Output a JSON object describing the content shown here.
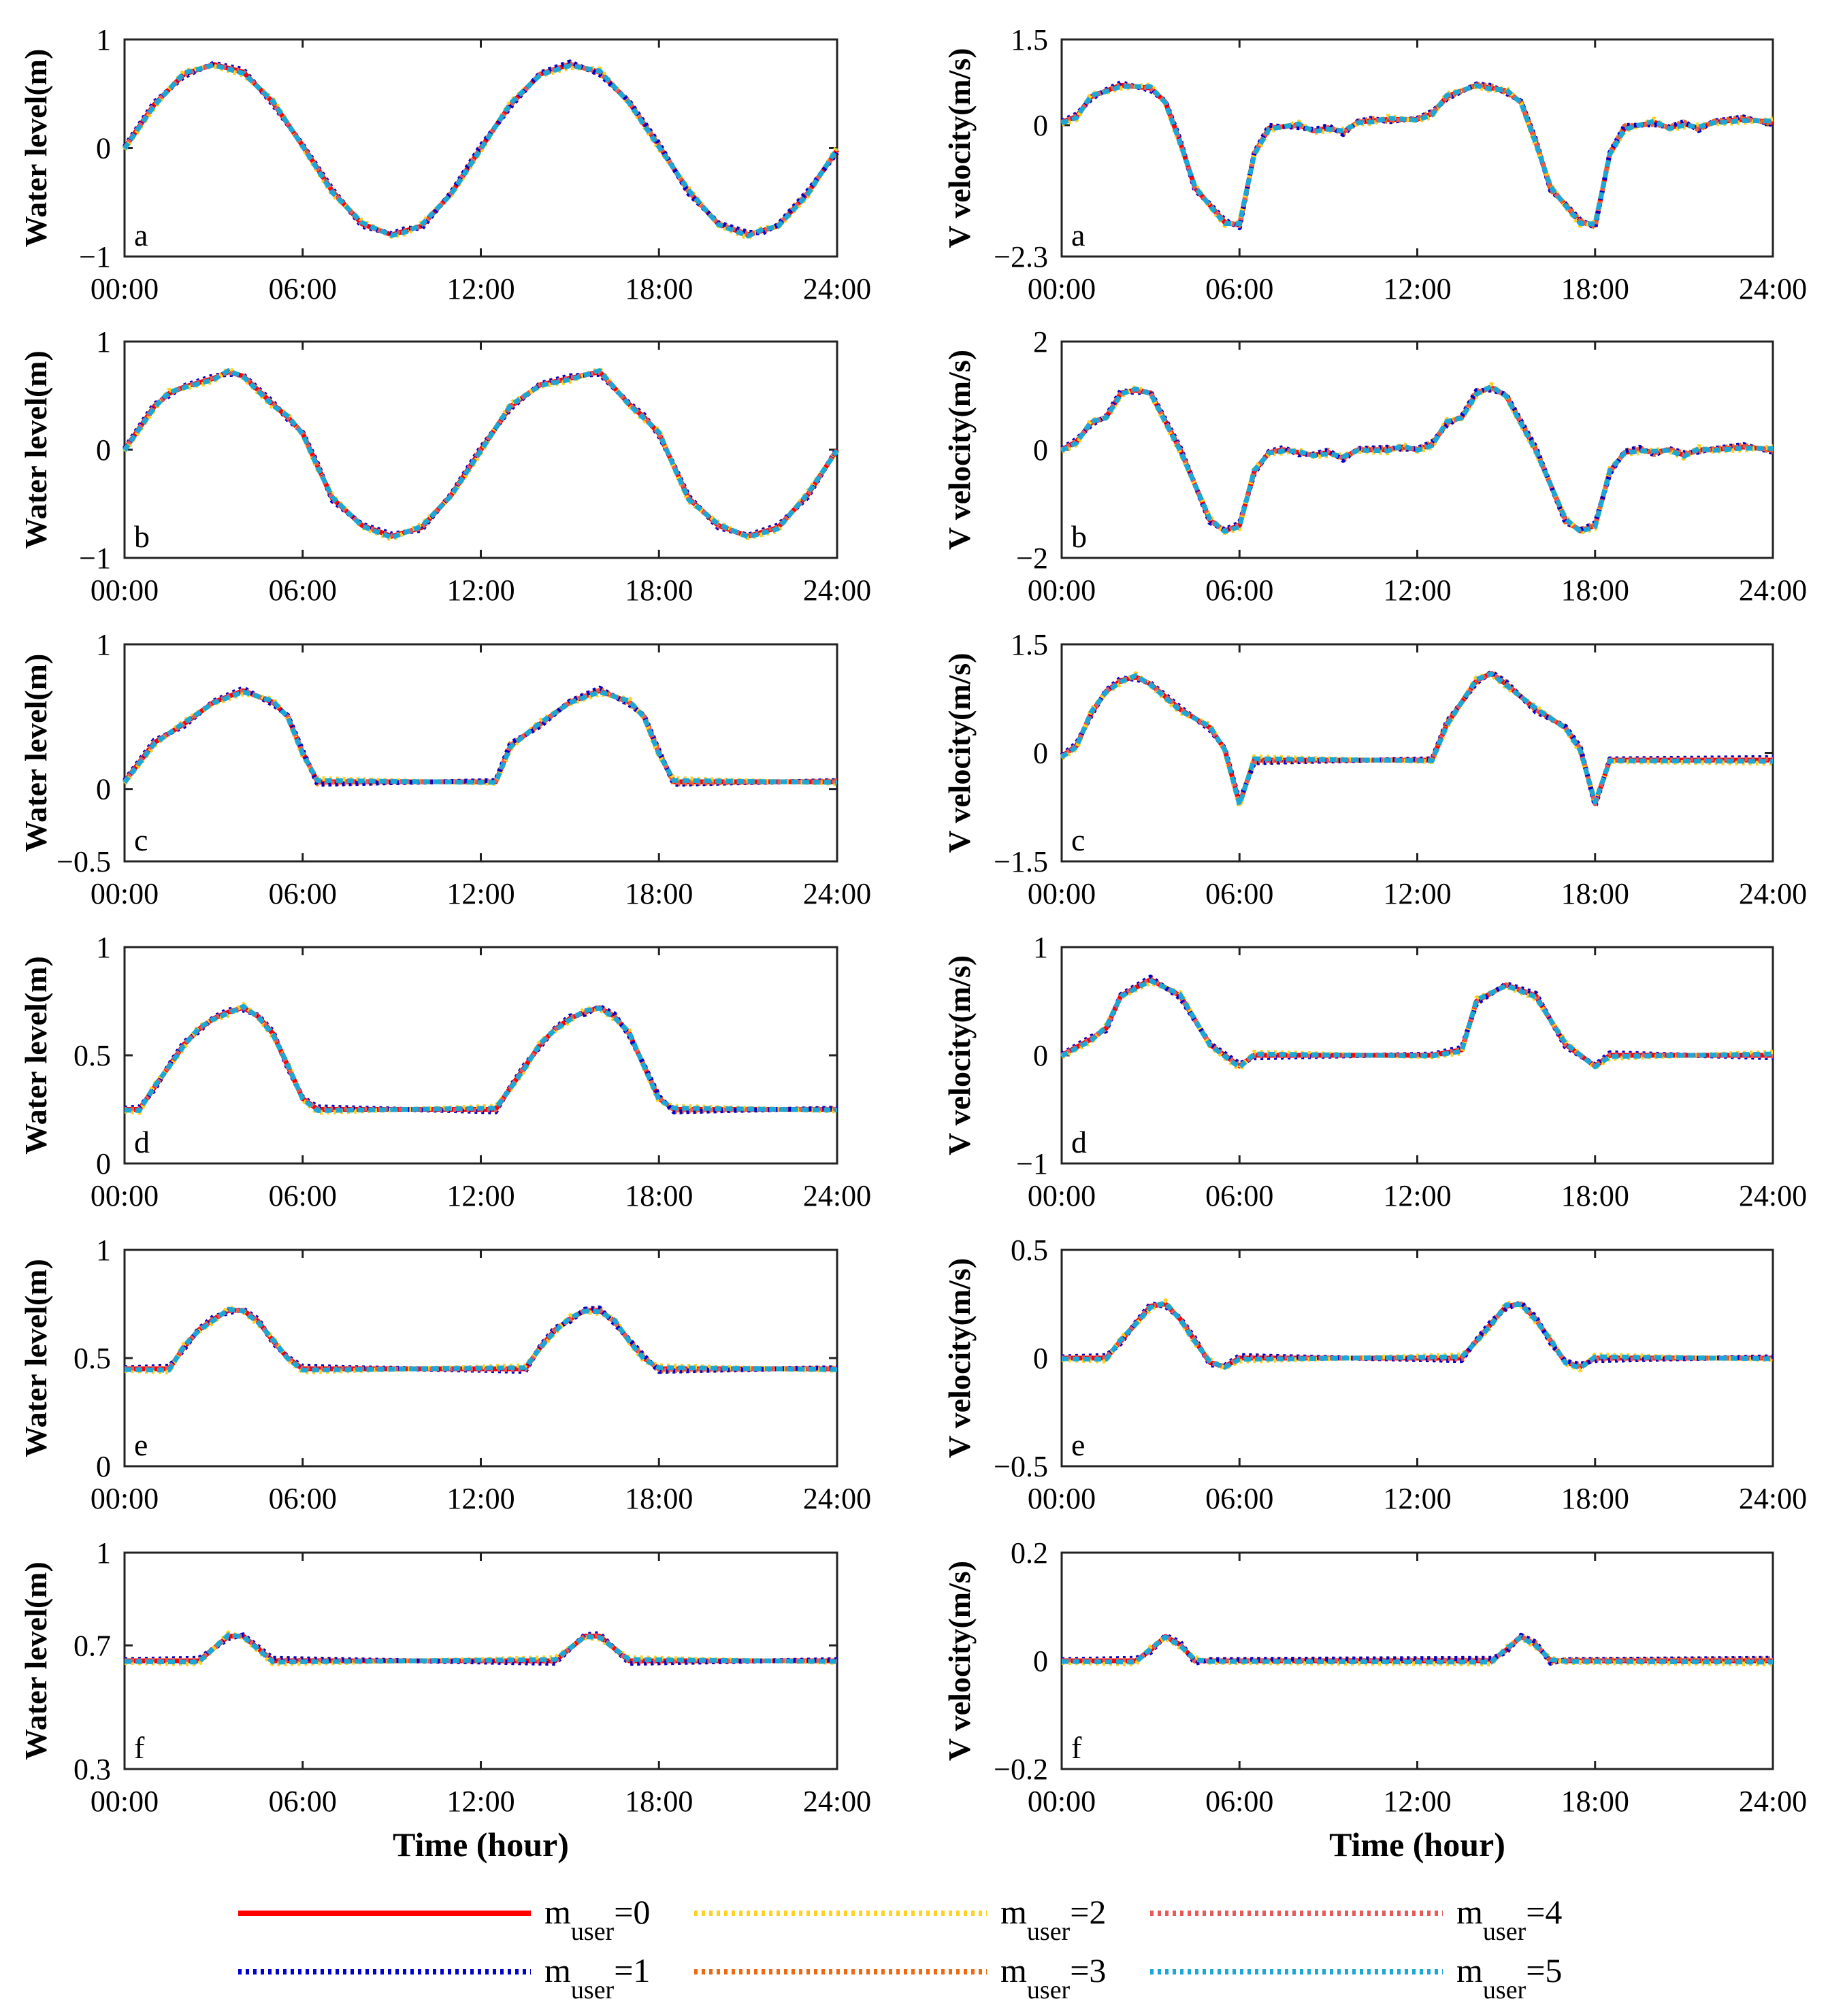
{
  "colors": {
    "m0": "#ff0000",
    "m1": "#0000cc",
    "m2": "#ffd21f",
    "m3": "#ee6a12",
    "m4": "#e85a5a",
    "m5": "#1ba8d6"
  },
  "legend": {
    "items": [
      {
        "key": "m0",
        "main": "m",
        "sub": "user",
        "eq": "=0",
        "style": "solid"
      },
      {
        "key": "m1",
        "main": "m",
        "sub": "user",
        "eq": "=1",
        "style": "dotted"
      },
      {
        "key": "m2",
        "main": "m",
        "sub": "user",
        "eq": "=2",
        "style": "dotted"
      },
      {
        "key": "m3",
        "main": "m",
        "sub": "user",
        "eq": "=3",
        "style": "dotted"
      },
      {
        "key": "m4",
        "main": "m",
        "sub": "user",
        "eq": "=4",
        "style": "dotted"
      },
      {
        "key": "m5",
        "main": "m",
        "sub": "user",
        "eq": "=5",
        "style": "dotted"
      }
    ]
  },
  "chart_data": [
    {
      "type": "line",
      "panel": "a",
      "column": "left",
      "ylabel": "Water level(m)",
      "xlabel": "",
      "ylim": [
        -1,
        1
      ],
      "yticks": [
        -1,
        0,
        1
      ],
      "yticklabels": [
        "−1",
        "0",
        "1"
      ],
      "xticklabels": [
        "00:00",
        "06:00",
        "12:00",
        "18:00",
        "24:00"
      ],
      "x": [
        0,
        1,
        2,
        3,
        4,
        5,
        6,
        7,
        8,
        9,
        9.5,
        10,
        11,
        12,
        13,
        14,
        15,
        16,
        17,
        18,
        19,
        20,
        21,
        21.5,
        22,
        23,
        24
      ],
      "y": [
        0,
        0.4,
        0.68,
        0.77,
        0.7,
        0.42,
        0.02,
        -0.4,
        -0.7,
        -0.8,
        -0.76,
        -0.72,
        -0.42,
        0,
        0.4,
        0.68,
        0.77,
        0.7,
        0.42,
        0.02,
        -0.4,
        -0.7,
        -0.8,
        -0.76,
        -0.72,
        -0.42,
        -0.02
      ]
    },
    {
      "type": "line",
      "panel": "a",
      "column": "right",
      "ylabel": "V velocity(m/s)",
      "xlabel": "",
      "ylim": [
        -2.3,
        1.5
      ],
      "yticks": [
        -2.3,
        0,
        1.5
      ],
      "yticklabels": [
        "−2.3",
        "0",
        "1.5"
      ],
      "xticklabels": [
        "00:00",
        "06:00",
        "12:00",
        "18:00",
        "24:00"
      ],
      "x": [
        0,
        0.5,
        1,
        1.5,
        2,
        3,
        3.5,
        4,
        4.5,
        5,
        5.5,
        6,
        6.5,
        7,
        8,
        8.5,
        9,
        9.5,
        10,
        10.5,
        11,
        12,
        12.5,
        13,
        14,
        14.5,
        15,
        15.5,
        16,
        16.5,
        17,
        17.5,
        18,
        18.5,
        19,
        20,
        20.5,
        21,
        21.5,
        22,
        23,
        24
      ],
      "y": [
        0.05,
        0.15,
        0.5,
        0.6,
        0.7,
        0.65,
        0.4,
        -0.3,
        -1.1,
        -1.4,
        -1.7,
        -1.75,
        -0.5,
        -0.05,
        0,
        -0.1,
        -0.05,
        -0.12,
        0.05,
        0.08,
        0.1,
        0.1,
        0.2,
        0.5,
        0.7,
        0.65,
        0.6,
        0.4,
        -0.3,
        -1.1,
        -1.4,
        -1.7,
        -1.75,
        -0.5,
        -0.05,
        0.05,
        -0.05,
        0.02,
        -0.05,
        0.05,
        0.1,
        0.05
      ]
    },
    {
      "type": "line",
      "panel": "b",
      "column": "left",
      "ylabel": "Water level(m)",
      "xlabel": "",
      "ylim": [
        -1,
        1
      ],
      "yticks": [
        -1,
        0,
        1
      ],
      "yticklabels": [
        "−1",
        "0",
        "1"
      ],
      "xticklabels": [
        "00:00",
        "06:00",
        "12:00",
        "18:00",
        "24:00"
      ],
      "x": [
        0,
        1,
        1.5,
        2,
        3,
        3.5,
        4,
        5,
        5.5,
        6,
        6.5,
        7,
        8,
        9,
        10,
        11,
        12,
        13,
        14,
        15,
        16,
        17,
        17.5,
        18,
        18.5,
        19,
        20,
        21,
        22,
        23,
        24
      ],
      "y": [
        0,
        0.4,
        0.52,
        0.58,
        0.66,
        0.72,
        0.68,
        0.42,
        0.3,
        0.15,
        -0.15,
        -0.45,
        -0.7,
        -0.8,
        -0.72,
        -0.42,
        0,
        0.4,
        0.6,
        0.66,
        0.72,
        0.42,
        0.3,
        0.15,
        -0.15,
        -0.45,
        -0.7,
        -0.8,
        -0.72,
        -0.42,
        0
      ]
    },
    {
      "type": "line",
      "panel": "b",
      "column": "right",
      "ylabel": "V velocity(m/s)",
      "xlabel": "",
      "ylim": [
        -2,
        2
      ],
      "yticks": [
        -2,
        0,
        2
      ],
      "yticklabels": [
        "−2",
        "0",
        "2"
      ],
      "xticklabels": [
        "00:00",
        "06:00",
        "12:00",
        "18:00",
        "24:00"
      ],
      "x": [
        0,
        0.5,
        1,
        1.5,
        2,
        2.5,
        3,
        4,
        5,
        5.5,
        6,
        6.5,
        7,
        7.5,
        8,
        8.5,
        9,
        9.5,
        10,
        11,
        11.5,
        12,
        12.5,
        13,
        13.5,
        14,
        14.5,
        15,
        16,
        17,
        17.5,
        18,
        18.5,
        19,
        19.5,
        20,
        20.5,
        21,
        21.5,
        22,
        23,
        24
      ],
      "y": [
        0,
        0.15,
        0.5,
        0.6,
        1.05,
        1.1,
        1.05,
        0,
        -1.3,
        -1.5,
        -1.4,
        -0.4,
        -0.05,
        0,
        -0.05,
        -0.1,
        -0.05,
        -0.15,
        0,
        0,
        0.05,
        0,
        0.1,
        0.5,
        0.6,
        1.05,
        1.15,
        1.0,
        0,
        -1.3,
        -1.5,
        -1.4,
        -0.4,
        -0.05,
        0,
        -0.05,
        0,
        -0.1,
        0,
        0,
        0.05,
        0
      ]
    },
    {
      "type": "line",
      "panel": "c",
      "column": "left",
      "ylabel": "Water level(m)",
      "xlabel": "",
      "ylim": [
        -0.5,
        1
      ],
      "yticks": [
        -0.5,
        0,
        1
      ],
      "yticklabels": [
        "−0.5",
        "0",
        "1"
      ],
      "xticklabels": [
        "00:00",
        "06:00",
        "12:00",
        "18:00",
        "24:00"
      ],
      "x": [
        0,
        1,
        2,
        3,
        4,
        5,
        5.5,
        6,
        6.5,
        12.5,
        13,
        14,
        15,
        16,
        17,
        17.5,
        18,
        18.5,
        24
      ],
      "y": [
        0.05,
        0.32,
        0.45,
        0.6,
        0.68,
        0.6,
        0.5,
        0.25,
        0.05,
        0.05,
        0.3,
        0.45,
        0.6,
        0.68,
        0.6,
        0.5,
        0.25,
        0.05,
        0.05
      ]
    },
    {
      "type": "line",
      "panel": "c",
      "column": "right",
      "ylabel": "V velocity(m/s)",
      "xlabel": "",
      "ylim": [
        -1.5,
        1.5
      ],
      "yticks": [
        -1.5,
        0,
        1.5
      ],
      "yticklabels": [
        "−1.5",
        "0",
        "1.5"
      ],
      "xticklabels": [
        "00:00",
        "06:00",
        "12:00",
        "18:00",
        "24:00"
      ],
      "x": [
        0,
        0.5,
        1,
        1.5,
        2,
        2.5,
        3,
        4,
        5,
        5.5,
        6,
        6.5,
        12.5,
        13,
        14,
        14.5,
        15,
        16,
        17,
        17.5,
        18,
        18.5,
        24
      ],
      "y": [
        -0.05,
        0.1,
        0.55,
        0.85,
        1.0,
        1.05,
        0.95,
        0.6,
        0.35,
        0.05,
        -0.7,
        -0.1,
        -0.1,
        0.4,
        1.0,
        1.1,
        0.95,
        0.6,
        0.35,
        0.05,
        -0.7,
        -0.1,
        -0.1
      ]
    },
    {
      "type": "line",
      "panel": "d",
      "column": "left",
      "ylabel": "Water level(m)",
      "xlabel": "",
      "ylim": [
        0,
        1
      ],
      "yticks": [
        0,
        0.5,
        1
      ],
      "yticklabels": [
        "0",
        "0.5",
        "1"
      ],
      "xticklabels": [
        "00:00",
        "06:00",
        "12:00",
        "18:00",
        "24:00"
      ],
      "x": [
        0,
        0.5,
        1,
        1.5,
        2,
        2.5,
        3,
        3.5,
        4,
        4.5,
        5,
        5.5,
        6,
        6.5,
        12.5,
        13,
        13.5,
        14,
        14.5,
        15,
        15.5,
        16,
        16.5,
        17,
        17.5,
        18,
        18.5,
        24
      ],
      "y": [
        0.25,
        0.25,
        0.35,
        0.45,
        0.55,
        0.62,
        0.67,
        0.7,
        0.72,
        0.68,
        0.6,
        0.45,
        0.3,
        0.25,
        0.25,
        0.35,
        0.45,
        0.55,
        0.62,
        0.67,
        0.7,
        0.72,
        0.68,
        0.6,
        0.45,
        0.3,
        0.25,
        0.25
      ]
    },
    {
      "type": "line",
      "panel": "d",
      "column": "right",
      "ylabel": "V velocity(m/s)",
      "xlabel": "",
      "ylim": [
        -1,
        1
      ],
      "yticks": [
        -1,
        0,
        1
      ],
      "yticklabels": [
        "−1",
        "0",
        "1"
      ],
      "xticklabels": [
        "00:00",
        "06:00",
        "12:00",
        "18:00",
        "24:00"
      ],
      "x": [
        0,
        1,
        1.5,
        2,
        3,
        4,
        5,
        6,
        6.5,
        12.5,
        13.5,
        14,
        15,
        16,
        17,
        18,
        18.5,
        24
      ],
      "y": [
        0,
        0.15,
        0.25,
        0.55,
        0.7,
        0.55,
        0.1,
        -0.1,
        0,
        0,
        0.05,
        0.5,
        0.65,
        0.55,
        0.1,
        -0.1,
        0,
        0
      ]
    },
    {
      "type": "line",
      "panel": "e",
      "column": "left",
      "ylabel": "Water level(m)",
      "xlabel": "",
      "ylim": [
        0,
        1
      ],
      "yticks": [
        0,
        0.5,
        1
      ],
      "yticklabels": [
        "0",
        "0.5",
        "1"
      ],
      "xticklabels": [
        "00:00",
        "06:00",
        "12:00",
        "18:00",
        "24:00"
      ],
      "x": [
        0,
        1.5,
        2,
        2.5,
        3,
        3.5,
        4,
        4.5,
        5,
        5.5,
        6,
        13.5,
        14,
        14.5,
        15,
        15.5,
        16,
        16.5,
        17,
        17.5,
        18,
        24
      ],
      "y": [
        0.45,
        0.45,
        0.55,
        0.63,
        0.68,
        0.72,
        0.72,
        0.67,
        0.58,
        0.5,
        0.45,
        0.45,
        0.55,
        0.63,
        0.68,
        0.72,
        0.72,
        0.67,
        0.58,
        0.5,
        0.45,
        0.45
      ]
    },
    {
      "type": "line",
      "panel": "e",
      "column": "right",
      "ylabel": "V velocity(m/s)",
      "xlabel": "",
      "ylim": [
        -0.5,
        0.5
      ],
      "yticks": [
        -0.5,
        0,
        0.5
      ],
      "yticklabels": [
        "−0.5",
        "0",
        "0.5"
      ],
      "xticklabels": [
        "00:00",
        "06:00",
        "12:00",
        "18:00",
        "24:00"
      ],
      "x": [
        0,
        1.5,
        2,
        2.5,
        3,
        3.5,
        4,
        4.5,
        5,
        5.5,
        6,
        13.5,
        14,
        14.5,
        15,
        15.5,
        16,
        16.5,
        17,
        17.5,
        18,
        24
      ],
      "y": [
        0,
        0,
        0.08,
        0.16,
        0.24,
        0.25,
        0.18,
        0.08,
        -0.02,
        -0.04,
        0,
        0,
        0.08,
        0.16,
        0.24,
        0.25,
        0.18,
        0.08,
        -0.02,
        -0.04,
        0,
        0
      ]
    },
    {
      "type": "line",
      "panel": "f",
      "column": "left",
      "ylabel": "Water level(m)",
      "xlabel": "Time (hour)",
      "ylim": [
        0.3,
        1
      ],
      "yticks": [
        0.3,
        0.7,
        1
      ],
      "yticklabels": [
        "0.3",
        "0.7",
        "1"
      ],
      "xticklabels": [
        "00:00",
        "06:00",
        "12:00",
        "18:00",
        "24:00"
      ],
      "x": [
        0,
        2.5,
        3.5,
        4,
        5,
        14.5,
        15.5,
        16,
        17,
        24
      ],
      "y": [
        0.65,
        0.65,
        0.73,
        0.73,
        0.65,
        0.65,
        0.73,
        0.73,
        0.65,
        0.65
      ]
    },
    {
      "type": "line",
      "panel": "f",
      "column": "right",
      "ylabel": "V velocity(m/s)",
      "xlabel": "Time (hour)",
      "ylim": [
        -0.2,
        0.2
      ],
      "yticks": [
        -0.2,
        0,
        0.2
      ],
      "yticklabels": [
        "−0.2",
        "0",
        "0.2"
      ],
      "xticklabels": [
        "00:00",
        "06:00",
        "12:00",
        "18:00",
        "24:00"
      ],
      "x": [
        0,
        2.5,
        3,
        3.5,
        4,
        4.5,
        5,
        14.5,
        15,
        15.5,
        16,
        16.5,
        17,
        24
      ],
      "y": [
        0,
        0,
        0.02,
        0.045,
        0.03,
        0,
        0,
        0,
        0.02,
        0.045,
        0.03,
        0,
        0,
        0
      ]
    }
  ]
}
